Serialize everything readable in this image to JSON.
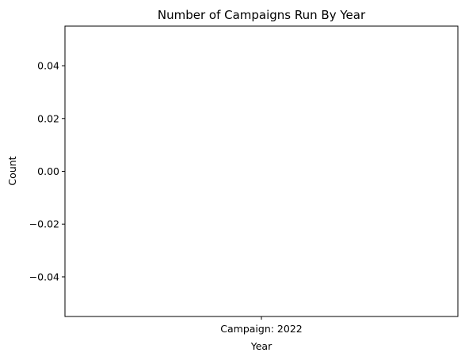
{
  "chart_data": {
    "type": "bar",
    "title": "Number of Campaigns Run By Year",
    "xlabel": "Year",
    "ylabel": "Count",
    "categories": [
      "Campaign: 2022"
    ],
    "values": [
      0
    ],
    "ylim": [
      -0.055,
      0.055
    ],
    "yticks": [
      0.04,
      0.02,
      0.0,
      -0.02,
      -0.04
    ],
    "ytick_labels": [
      "0.04",
      "0.02",
      "0.00",
      "−0.02",
      "−0.04"
    ],
    "grid": false,
    "legend": "none"
  }
}
